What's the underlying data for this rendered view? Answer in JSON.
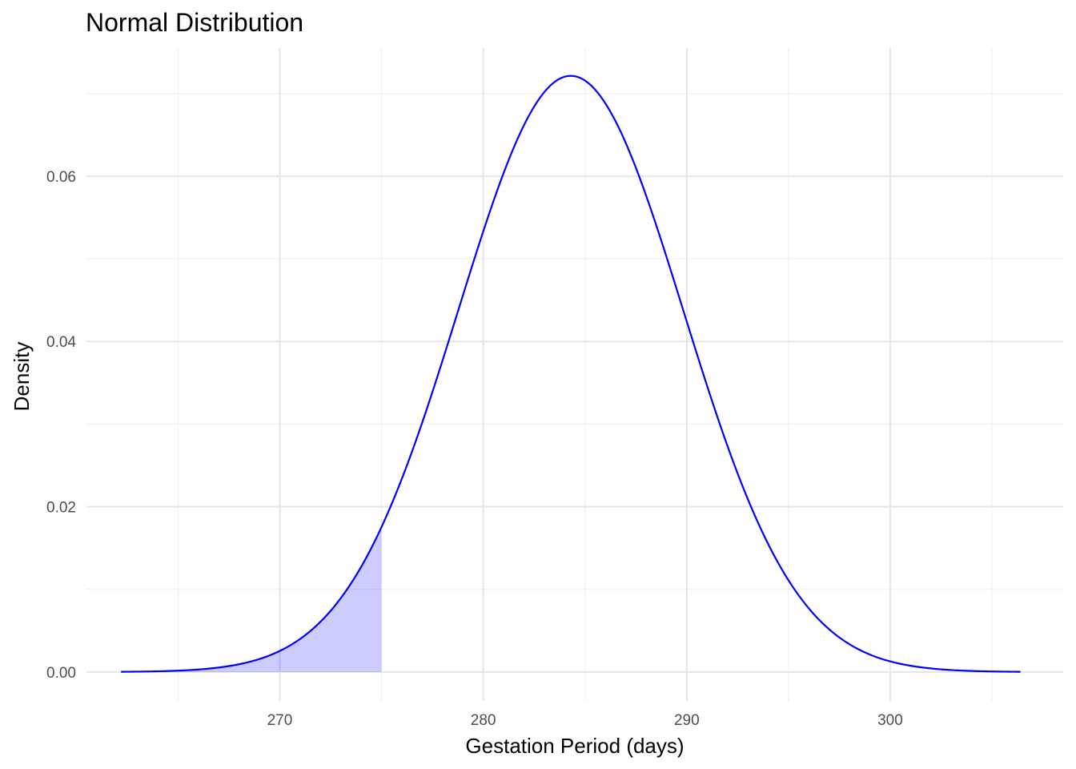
{
  "chart_data": {
    "type": "area",
    "title": "Normal Distribution",
    "xlabel": "Gestation Period (days)",
    "ylabel": "Density",
    "distribution": {
      "mean": 284.3,
      "sd": 5.53
    },
    "xlim": [
      260.5,
      308.5
    ],
    "ylim": [
      -0.0035,
      0.0755
    ],
    "curve_range": [
      262.2,
      306.4
    ],
    "shaded_range": [
      262.2,
      275
    ],
    "x_ticks": [
      270,
      280,
      290,
      300
    ],
    "x_tick_labels": [
      "270",
      "280",
      "290",
      "300"
    ],
    "x_minor_ticks": [
      265,
      275,
      285,
      295,
      305
    ],
    "y_ticks": [
      0,
      0.02,
      0.04,
      0.06
    ],
    "y_tick_labels": [
      "0.00",
      "0.02",
      "0.04",
      "0.06"
    ],
    "y_minor_ticks": [
      0.01,
      0.03,
      0.05,
      0.07
    ],
    "grid": true,
    "colors": {
      "line": "#0000ff",
      "fill": "#0000ff",
      "fill_opacity": 0.2
    }
  }
}
